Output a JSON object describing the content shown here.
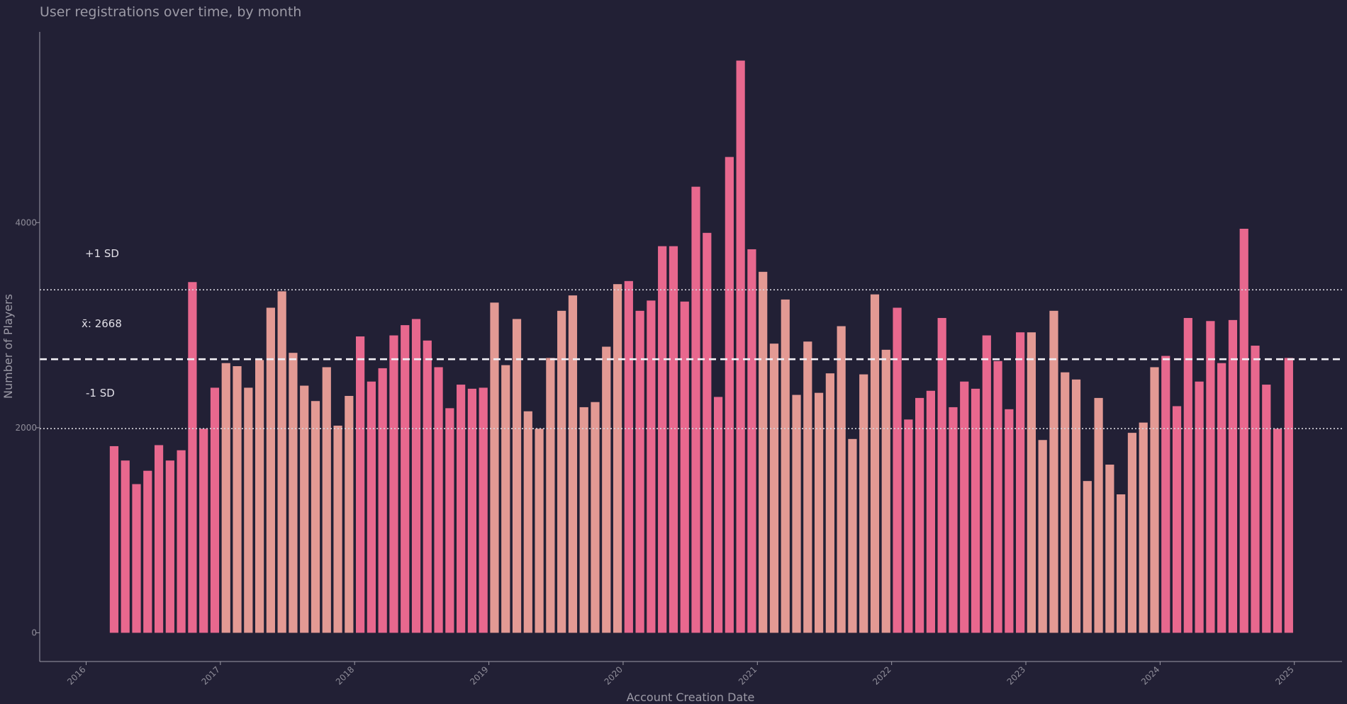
{
  "chart_data": {
    "type": "bar",
    "title": "User registrations over time, by month",
    "xlabel": "Account Creation Date",
    "ylabel": "Number of Players",
    "ylim": [
      -280,
      5860
    ],
    "yticks": [
      0,
      2000,
      4000
    ],
    "xticks": [
      "2016",
      "2017",
      "2018",
      "2019",
      "2020",
      "2021",
      "2022",
      "2023",
      "2024",
      "2025"
    ],
    "x_start": "2016-03",
    "colors": {
      "pink": "#e8688e",
      "peach": "#e39a94",
      "mean_line": "#f2f0f6",
      "sd_line": "#d8d6de",
      "axis": "#9c9aa6"
    },
    "mean": 2668,
    "sd_upper": 3345,
    "sd_lower": 1991,
    "annotations": {
      "mean_label": "x̄: 2668",
      "upper_label": "+1 SD",
      "lower_label": "-1 SD"
    },
    "values": [
      1820,
      1680,
      1450,
      1580,
      1830,
      1680,
      1780,
      3420,
      1990,
      2390,
      2630,
      2600,
      2390,
      2660,
      3170,
      3330,
      2730,
      2410,
      2260,
      2590,
      2020,
      2310,
      2890,
      2450,
      2580,
      2900,
      3000,
      3060,
      2850,
      2590,
      2190,
      2420,
      2380,
      2390,
      3220,
      2610,
      3060,
      2160,
      1990,
      2680,
      3140,
      3290,
      2200,
      2250,
      2790,
      3400,
      3430,
      3140,
      3240,
      3770,
      3770,
      3230,
      4350,
      3900,
      2300,
      4640,
      5580,
      3740,
      3520,
      2820,
      3250,
      2320,
      2840,
      2340,
      2530,
      2990,
      1890,
      2520,
      3300,
      2760,
      3170,
      2080,
      2290,
      2360,
      3070,
      2200,
      2450,
      2380,
      2900,
      2650,
      2180,
      2930,
      2930,
      1880,
      3140,
      2540,
      2470,
      1480,
      2290,
      1640,
      1350,
      1950,
      2050,
      2590,
      2700,
      2210,
      3070,
      2450,
      3040,
      2630,
      3050,
      3940,
      2800,
      2420,
      1990,
      2680
    ],
    "colorPattern": [
      "pink",
      "pink",
      "pink",
      "pink",
      "pink",
      "pink",
      "pink",
      "pink",
      "pink",
      "pink",
      "peach",
      "peach",
      "peach",
      "peach",
      "peach",
      "peach",
      "peach",
      "peach",
      "peach",
      "peach",
      "peach",
      "peach",
      "pink",
      "pink",
      "pink",
      "pink",
      "pink",
      "pink",
      "pink",
      "pink",
      "pink",
      "pink",
      "pink",
      "pink",
      "peach",
      "peach",
      "peach",
      "peach",
      "peach",
      "peach",
      "peach",
      "peach",
      "peach",
      "peach",
      "peach",
      "peach",
      "pink",
      "pink",
      "pink",
      "pink",
      "pink",
      "pink",
      "pink",
      "pink",
      "pink",
      "pink",
      "pink",
      "pink",
      "peach",
      "peach",
      "peach",
      "peach",
      "peach",
      "peach",
      "peach",
      "peach",
      "peach",
      "peach",
      "peach",
      "peach",
      "pink",
      "pink",
      "pink",
      "pink",
      "pink",
      "pink",
      "pink",
      "pink",
      "pink",
      "pink",
      "pink",
      "pink",
      "peach",
      "peach",
      "peach",
      "peach",
      "peach",
      "peach",
      "peach",
      "peach",
      "peach",
      "peach",
      "peach",
      "peach",
      "pink",
      "pink",
      "pink",
      "pink",
      "pink",
      "pink",
      "pink",
      "pink",
      "pink",
      "pink",
      "pink",
      "pink"
    ]
  }
}
